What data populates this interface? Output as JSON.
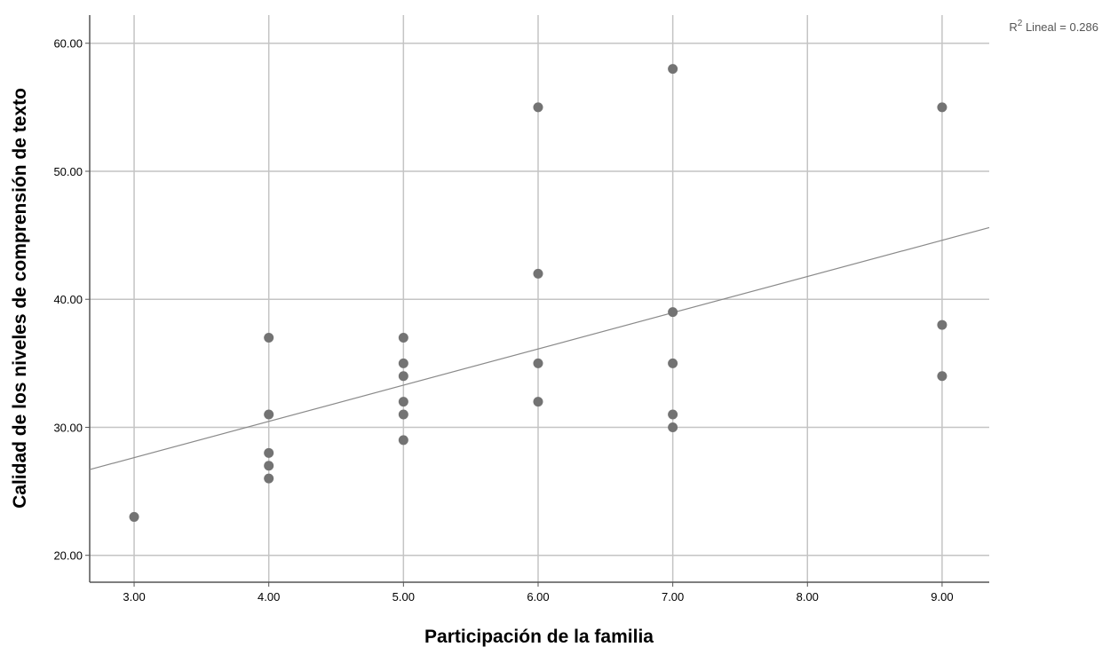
{
  "chart_data": {
    "type": "scatter",
    "xlabel": "Participación de la familia",
    "ylabel": "Calidad de los niveles de comprensión de texto",
    "xlim": [
      2.67,
      9.35
    ],
    "ylim": [
      17.9,
      62.2
    ],
    "x_ticks": [
      "3.00",
      "4.00",
      "5.00",
      "6.00",
      "7.00",
      "8.00",
      "9.00"
    ],
    "y_ticks": [
      "20.00",
      "30.00",
      "40.00",
      "50.00",
      "60.00"
    ],
    "grid": true,
    "points": [
      {
        "x": 3,
        "y": 23
      },
      {
        "x": 4,
        "y": 37
      },
      {
        "x": 4,
        "y": 31
      },
      {
        "x": 4,
        "y": 28
      },
      {
        "x": 4,
        "y": 27
      },
      {
        "x": 4,
        "y": 26
      },
      {
        "x": 5,
        "y": 37
      },
      {
        "x": 5,
        "y": 35
      },
      {
        "x": 5,
        "y": 34
      },
      {
        "x": 5,
        "y": 32
      },
      {
        "x": 5,
        "y": 31
      },
      {
        "x": 5,
        "y": 29
      },
      {
        "x": 6,
        "y": 55
      },
      {
        "x": 6,
        "y": 42
      },
      {
        "x": 6,
        "y": 35
      },
      {
        "x": 6,
        "y": 32
      },
      {
        "x": 7,
        "y": 58
      },
      {
        "x": 7,
        "y": 39
      },
      {
        "x": 7,
        "y": 35
      },
      {
        "x": 7,
        "y": 31
      },
      {
        "x": 7,
        "y": 30
      },
      {
        "x": 9,
        "y": 55
      },
      {
        "x": 9,
        "y": 38
      },
      {
        "x": 9,
        "y": 34
      }
    ],
    "fit_line": {
      "type": "linear",
      "x": [
        2.67,
        9.35
      ],
      "y": [
        26.7,
        45.6
      ]
    },
    "r2_label": "R",
    "r2_superscript": "2",
    "r2_text": " Lineal = 0.286",
    "colors": {
      "point": "#737373",
      "grid": "#c4c4c4",
      "fit": "#8a8a8a",
      "axis": "#555555"
    }
  }
}
